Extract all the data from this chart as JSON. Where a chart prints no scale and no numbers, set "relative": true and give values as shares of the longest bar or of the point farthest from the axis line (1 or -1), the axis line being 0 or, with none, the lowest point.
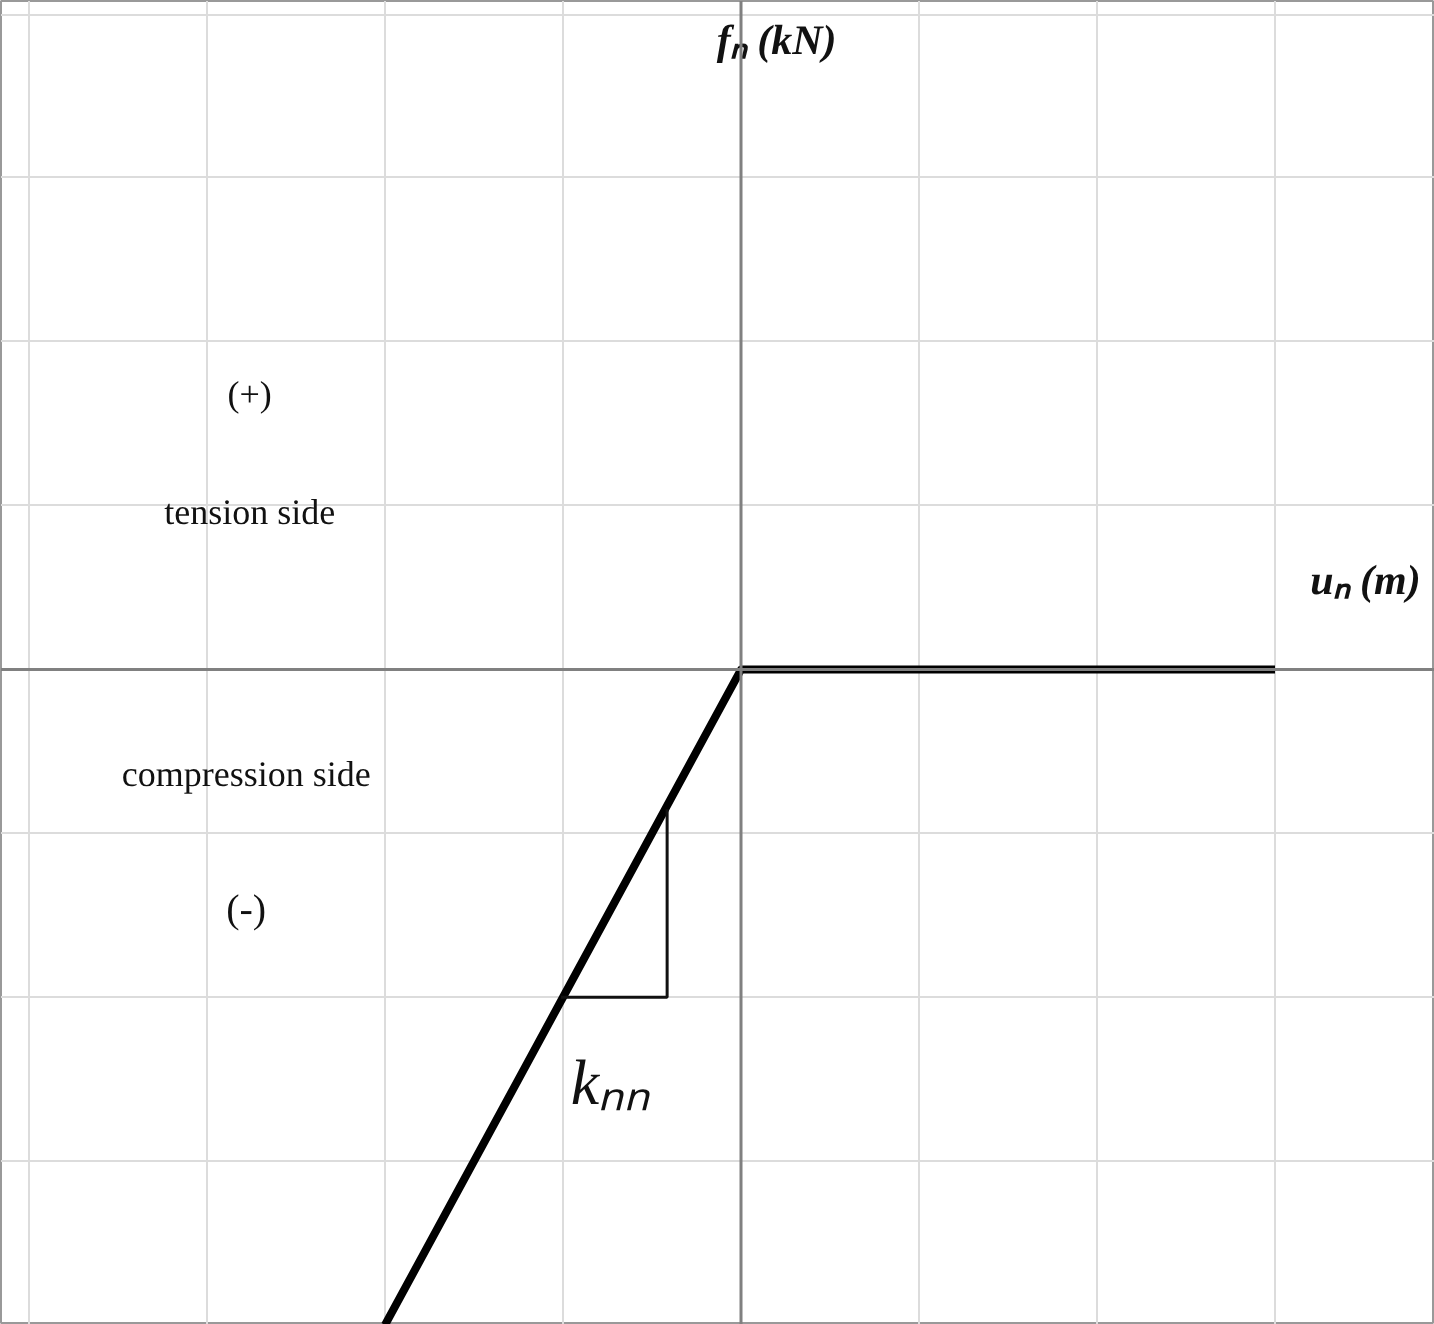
{
  "chart_data": {
    "type": "line",
    "relative": true,
    "xlabel": "uₙ (m)",
    "categories": [
      null,
      null,
      null,
      null,
      null,
      null
    ],
    "series": [
      {
        "color": "#000000",
        "values": [
          -1,
          -0.5,
          0,
          0,
          0,
          0
        ]
      }
    ],
    "annotations": [
      "fₙ (kN)",
      "(+)",
      "tension side",
      "compression side",
      "(-)",
      "kₙₙ"
    ],
    "grid": true,
    "marker": "none",
    "line_style": "solid",
    "tick_labels": false
  }
}
